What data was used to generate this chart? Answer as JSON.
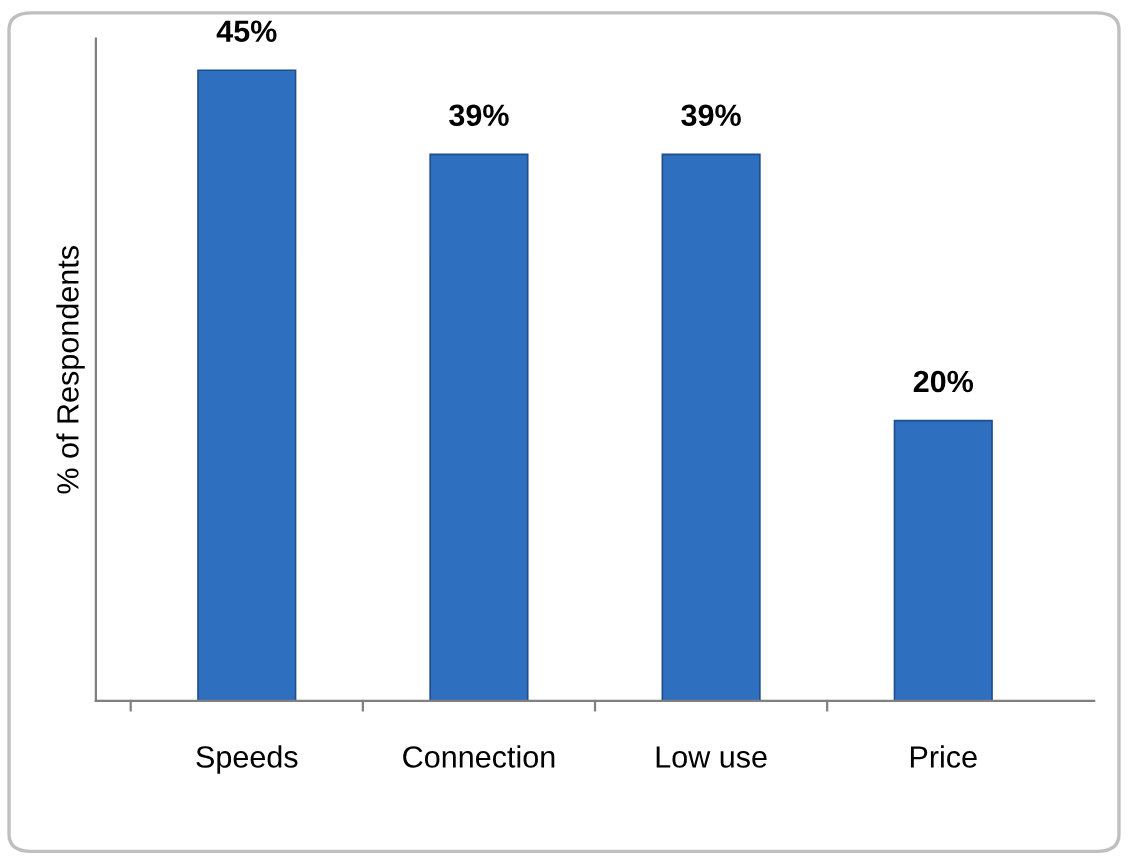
{
  "chart_data": {
    "type": "bar",
    "ylabel": "% of Respondents",
    "categories": [
      "Speeds",
      "Connection",
      "Low use",
      "Price"
    ],
    "values": [
      45,
      39,
      39,
      20
    ],
    "value_labels": [
      "45%",
      "39%",
      "39%",
      "20%"
    ],
    "color": "#2f6fbf",
    "grid": false,
    "legend": false,
    "tick_labels": "x"
  }
}
